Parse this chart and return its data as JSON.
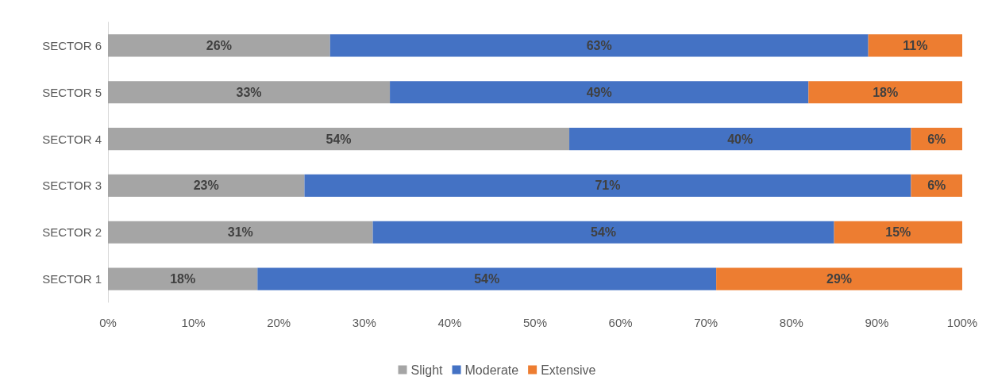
{
  "chart_data": {
    "type": "bar",
    "orientation": "horizontal",
    "stacked": true,
    "categories": [
      "SECTOR 6",
      "SECTOR 5",
      "SECTOR 4",
      "SECTOR 3",
      "SECTOR 2",
      "SECTOR 1"
    ],
    "series": [
      {
        "name": "Slight",
        "color": "#a5a5a5",
        "values": [
          26,
          33,
          54,
          23,
          31,
          17.5
        ],
        "value_labels": [
          "26%",
          "33%",
          "54%",
          "23%",
          "31%",
          "18%"
        ]
      },
      {
        "name": "Moderate",
        "color": "#4472c4",
        "values": [
          63,
          49,
          40,
          71,
          54,
          53.7
        ],
        "value_labels": [
          "63%",
          "49%",
          "40%",
          "71%",
          "54%",
          "54%"
        ]
      },
      {
        "name": "Extensive",
        "color": "#ed7d31",
        "values": [
          11,
          18,
          6,
          6,
          15,
          28.8
        ],
        "value_labels": [
          "11%",
          "18%",
          "6%",
          "6%",
          "15%",
          "29%"
        ]
      }
    ],
    "xlim": [
      0,
      100
    ],
    "xticks": [
      {
        "value": 0,
        "label": "0%"
      },
      {
        "value": 10,
        "label": "10%"
      },
      {
        "value": 20,
        "label": "20%"
      },
      {
        "value": 30,
        "label": "30%"
      },
      {
        "value": 40,
        "label": "40%"
      },
      {
        "value": 50,
        "label": "50%"
      },
      {
        "value": 60,
        "label": "60%"
      },
      {
        "value": 70,
        "label": "70%"
      },
      {
        "value": 80,
        "label": "80%"
      },
      {
        "value": 90,
        "label": "90%"
      },
      {
        "value": 100,
        "label": "100%"
      }
    ],
    "grid": false,
    "legend": "bottom"
  }
}
